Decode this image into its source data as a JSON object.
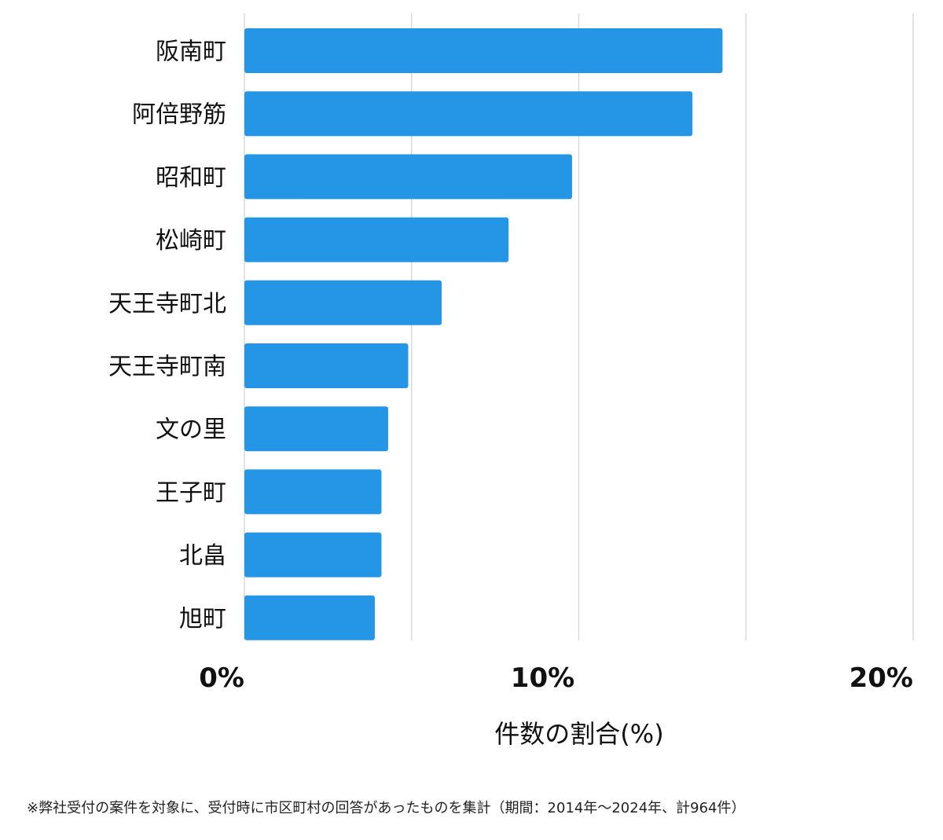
{
  "chart_data": {
    "type": "bar",
    "orientation": "horizontal",
    "categories": [
      "阪南町",
      "阿倍野筋",
      "昭和町",
      "松崎町",
      "天王寺町北",
      "天王寺町南",
      "文の里",
      "王子町",
      "北畠",
      "旭町"
    ],
    "values": [
      14.3,
      13.4,
      9.8,
      7.9,
      5.9,
      4.9,
      4.3,
      4.1,
      4.1,
      3.9
    ],
    "xlabel": "件数の割合(%)",
    "xlim": [
      0,
      20
    ],
    "xticks": [
      0,
      10,
      20
    ],
    "xtick_labels": [
      "0%",
      "10%",
      "20%"
    ],
    "grid": true,
    "bar_color": "#2596e6",
    "grid_color": "#d9d9d9"
  },
  "footnote": "※弊社受付の案件を対象に、受付時に市区町村の回答があったものを集計（期間：2014年〜2024年、計964件）"
}
